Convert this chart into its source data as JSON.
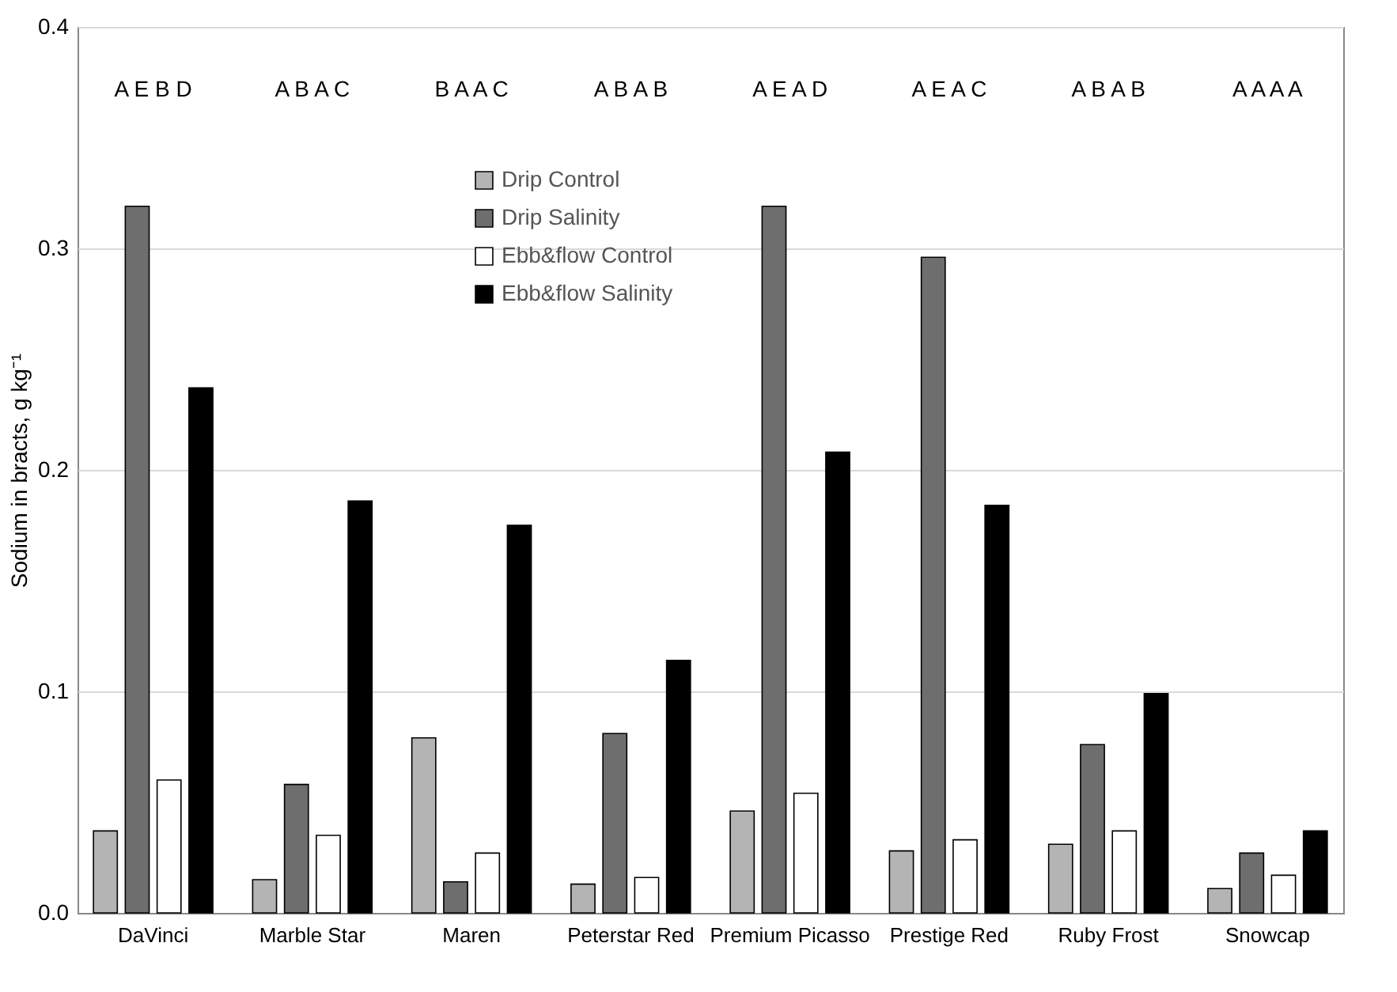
{
  "chart_data": {
    "type": "bar",
    "ylabel": "Sodium in bracts, g kg⁻¹",
    "categories": [
      "DaVinci",
      "Marble Star",
      "Maren",
      "Peterstar Red",
      "Premium Picasso",
      "Prestige Red",
      "Ruby Frost",
      "Snowcap"
    ],
    "series": [
      {
        "name": "Drip Control",
        "color": "#b4b4b4",
        "values": [
          0.037,
          0.015,
          0.079,
          0.013,
          0.046,
          0.028,
          0.031,
          0.011
        ]
      },
      {
        "name": "Drip Salinity",
        "color": "#6e6e6e",
        "values": [
          0.319,
          0.058,
          0.014,
          0.081,
          0.319,
          0.296,
          0.076,
          0.027
        ]
      },
      {
        "name": "Ebb&flow Control",
        "color": "#ffffff",
        "values": [
          0.06,
          0.035,
          0.027,
          0.016,
          0.054,
          0.033,
          0.037,
          0.017
        ]
      },
      {
        "name": "Ebb&flow Salinity",
        "color": "#000000",
        "values": [
          0.237,
          0.186,
          0.175,
          0.114,
          0.208,
          0.184,
          0.099,
          0.037
        ]
      }
    ],
    "ylim": [
      0,
      0.4
    ],
    "yticks": [
      {
        "value": 0,
        "label": "0.0"
      },
      0.1,
      0.2,
      0.3,
      0.4
    ],
    "grid": "y",
    "legend": "top",
    "annotations": [
      "A E B D",
      "A B A C",
      "B A A C",
      "A B A B",
      "A E A D",
      "A E A C",
      "A B A B",
      "A A A A"
    ]
  }
}
